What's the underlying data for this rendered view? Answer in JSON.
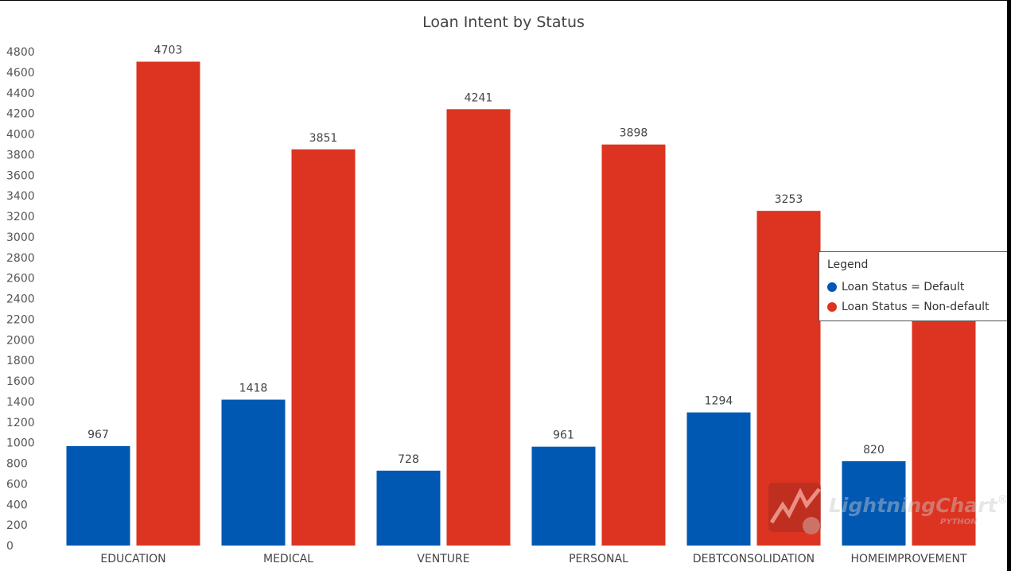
{
  "chart_data": {
    "type": "bar",
    "title": "Loan Intent by Status",
    "categories": [
      "EDUCATION",
      "MEDICAL",
      "VENTURE",
      "PERSONAL",
      "DEBTCONSOLIDATION",
      "HOMEIMPROVEMENT"
    ],
    "series": [
      {
        "name": "Loan Status = Default",
        "color": "#0058b3",
        "values": [
          967,
          1418,
          728,
          961,
          1294,
          820
        ]
      },
      {
        "name": "Loan Status = Non-default",
        "color": "#dc3421",
        "values": [
          4703,
          3851,
          4241,
          3898,
          3253,
          2217
        ]
      }
    ],
    "ylim": [
      0,
      4800
    ],
    "yticks": [
      0,
      200,
      400,
      600,
      800,
      1000,
      1200,
      1400,
      1600,
      1800,
      2000,
      2200,
      2400,
      2600,
      2800,
      3000,
      3200,
      3400,
      3600,
      3800,
      4000,
      4200,
      4400,
      4600,
      4800
    ],
    "grid": false,
    "legend_position": "right",
    "data_labels_visible": [
      "967",
      "4703",
      "1418",
      "3851",
      "728",
      "4241",
      "961",
      "3898",
      "1294",
      "3253",
      "820"
    ]
  },
  "legend": {
    "title": "Legend",
    "items": [
      {
        "label": "Loan Status = Default",
        "color": "#0058b3"
      },
      {
        "label": "Loan Status = Non-default",
        "color": "#dc3421"
      }
    ]
  },
  "watermark": {
    "text": "LightningChart",
    "registered": "®",
    "sub": "PYTHON"
  }
}
